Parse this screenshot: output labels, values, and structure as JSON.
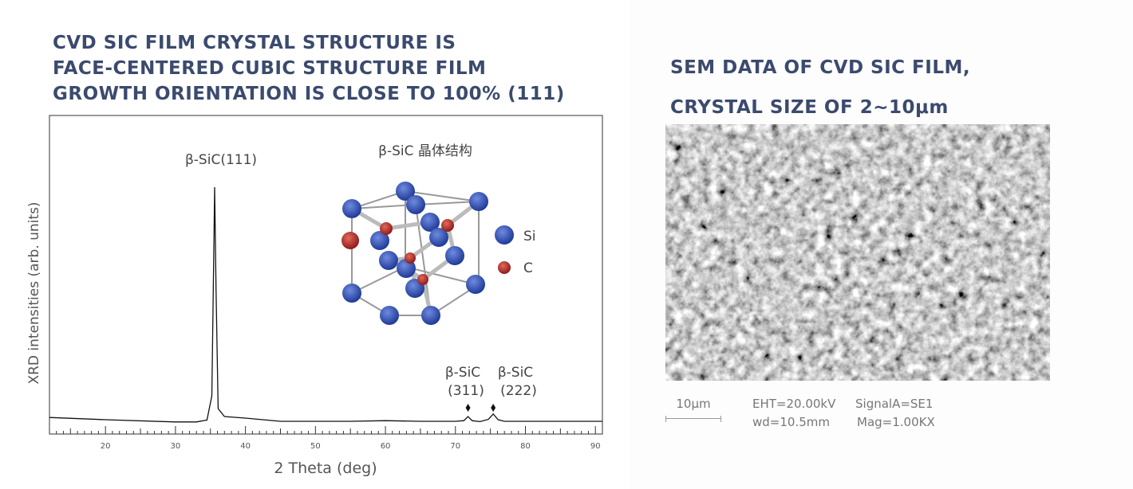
{
  "left": {
    "title_lines": [
      "CVD SIC FILM CRYSTAL STRUCTURE IS",
      "FACE-CENTERED CUBIC STRUCTURE FILM",
      "GROWTH ORIENTATION IS CLOSE TO 100% (111)"
    ]
  },
  "right": {
    "title_lines": [
      "SEM DATA OF CVD SIC FILM,",
      "CRYSTAL SIZE OF 2~10μm"
    ],
    "scale_bar": "10μm",
    "eht": "EHT=20.00kV",
    "signal": "SignalA=SE1",
    "wd": "wd=10.5mm",
    "mag": "Mag=1.00KX"
  },
  "chart_data": {
    "type": "line",
    "title": "",
    "xlabel": "2  Theta (deg)",
    "ylabel": "XRD intensities (arb. units)",
    "xlim": [
      12,
      91
    ],
    "ylim": [
      0,
      100
    ],
    "xticks": [
      20,
      30,
      40,
      50,
      60,
      70,
      80,
      90
    ],
    "grid": false,
    "series": [
      {
        "x": [
          12,
          20,
          30,
          33,
          34.5,
          35.2,
          35.5,
          35.6,
          35.8,
          36.1,
          37,
          40,
          45,
          55,
          60,
          65,
          70,
          71.2,
          71.8,
          72.4,
          73.5,
          74.7,
          75.4,
          76.1,
          77,
          85,
          91
        ],
        "y": [
          5.2,
          4.5,
          3.8,
          3.8,
          4.4,
          12,
          60,
          77.5,
          45,
          8,
          5.5,
          5,
          4,
          4,
          4.2,
          4,
          4,
          4.2,
          5.5,
          4.2,
          3.9,
          4.6,
          6.3,
          4.5,
          4,
          4,
          4
        ]
      }
    ],
    "annotations": [
      {
        "label": "β-SiC(111)",
        "x": 35.6
      },
      {
        "label_lines": [
          "β-SiC",
          "(311)"
        ],
        "x": 71.8,
        "marker": "diamond"
      },
      {
        "label_lines": [
          "β-SiC",
          "(222)"
        ],
        "x": 75.4,
        "marker": "diamond"
      }
    ],
    "inset": {
      "title": "β-SiC 晶体结构",
      "legend": [
        {
          "label": "Si",
          "color": "#2f4fae"
        },
        {
          "label": "C",
          "color": "#b02a2a"
        }
      ]
    }
  }
}
